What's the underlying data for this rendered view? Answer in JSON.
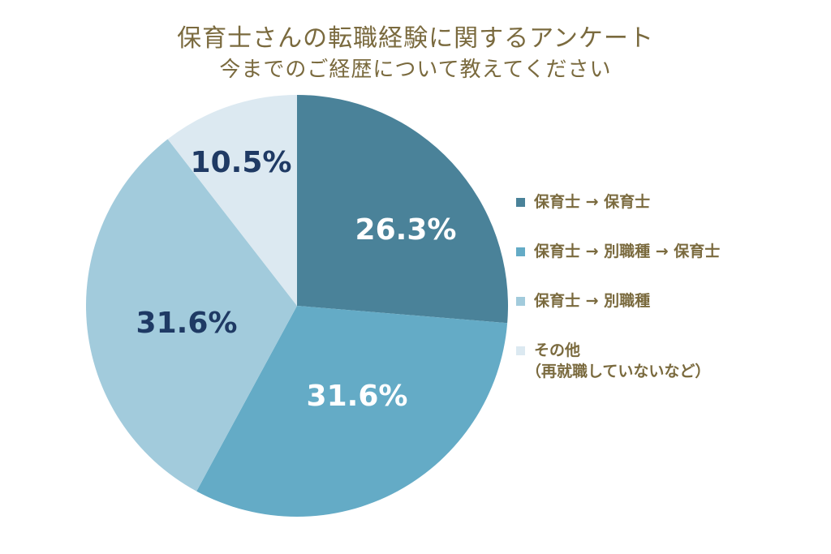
{
  "chart_data": {
    "type": "pie",
    "title": "保育士さんの転職経験に関するアンケート",
    "subtitle": "今までのご経歴について教えてください",
    "legend_position": "right",
    "slices": [
      {
        "label": "保育士 → 保育士",
        "sublabel": "",
        "value": 26.3,
        "display": "26.3%",
        "color": "#4a8299",
        "text_color": "#ffffff"
      },
      {
        "label": "保育士 → 別職種 → 保育士",
        "sublabel": "",
        "value": 31.6,
        "display": "31.6%",
        "color": "#64abc6",
        "text_color": "#ffffff"
      },
      {
        "label": "保育士 → 別職種",
        "sublabel": "",
        "value": 31.6,
        "display": "31.6%",
        "color": "#a2cbdc",
        "text_color": "#1f3a64"
      },
      {
        "label": "その他",
        "sublabel": "（再就職していないなど）",
        "value": 10.5,
        "display": "10.5%",
        "color": "#dce9f1",
        "text_color": "#1f3a64"
      }
    ]
  }
}
